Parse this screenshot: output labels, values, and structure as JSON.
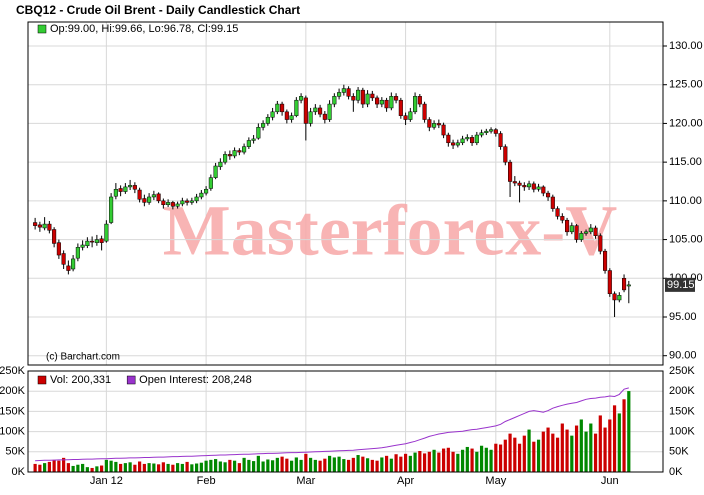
{
  "chart_data": [
    {
      "type": "candlestick",
      "title": "CBQ12 - Crude Oil Brent - Daily Candlestick Chart",
      "legend": "Op:99.00, Hi:99.66, Lo:96.78, Cl:99.15",
      "legend_color": "#33cc33",
      "watermark": "Masterforex-V",
      "credit": "(c) Barchart.com",
      "up_color": "#33cc33",
      "down_color": "#cc0000",
      "grid": true,
      "xlim": [
        -1.5,
        132.2
      ],
      "ylim": [
        88.8,
        133.1
      ],
      "yticks": [
        {
          "value": 90,
          "label": "90.00"
        },
        {
          "value": 95,
          "label": "95.00"
        },
        {
          "value": 100,
          "label": "100.00"
        },
        {
          "value": 105,
          "label": "105.00"
        },
        {
          "value": 110,
          "label": "110.00"
        },
        {
          "value": 115,
          "label": "115.00"
        },
        {
          "value": 120,
          "label": "120.00"
        },
        {
          "value": 125,
          "label": "125.00"
        },
        {
          "value": 130,
          "label": "130.00"
        }
      ],
      "candles": [
        [
          107.2,
          107.8,
          106.3,
          106.8
        ],
        [
          106.9,
          107.3,
          106.0,
          106.6
        ],
        [
          106.5,
          107.9,
          106.2,
          107.0
        ],
        [
          107.0,
          107.4,
          105.8,
          106.2
        ],
        [
          106.3,
          106.6,
          104.0,
          104.5
        ],
        [
          104.6,
          105.0,
          102.5,
          103.0
        ],
        [
          103.2,
          103.6,
          101.2,
          101.8
        ],
        [
          101.6,
          102.3,
          100.5,
          101.0
        ],
        [
          101.2,
          103.0,
          100.9,
          102.5
        ],
        [
          102.6,
          104.5,
          102.2,
          104.0
        ],
        [
          104.0,
          104.9,
          103.6,
          104.3
        ],
        [
          104.2,
          105.3,
          103.9,
          104.8
        ],
        [
          104.8,
          105.4,
          104.0,
          104.7
        ],
        [
          104.6,
          105.6,
          104.2,
          105.0
        ],
        [
          105.1,
          105.5,
          103.6,
          104.6
        ],
        [
          104.8,
          107.5,
          104.6,
          107.0
        ],
        [
          107.2,
          111.0,
          107.0,
          110.5
        ],
        [
          110.6,
          112.3,
          110.2,
          111.5
        ],
        [
          111.6,
          112.0,
          110.6,
          111.2
        ],
        [
          111.2,
          112.3,
          110.9,
          111.8
        ],
        [
          111.8,
          112.7,
          111.4,
          112.0
        ],
        [
          112.0,
          112.4,
          111.0,
          111.5
        ],
        [
          111.4,
          111.7,
          109.8,
          110.2
        ],
        [
          110.3,
          110.8,
          109.3,
          109.8
        ],
        [
          109.8,
          111.0,
          109.5,
          110.5
        ],
        [
          110.5,
          111.3,
          110.1,
          110.8
        ],
        [
          110.9,
          111.1,
          109.7,
          110.0
        ],
        [
          110.0,
          110.3,
          109.0,
          109.5
        ],
        [
          109.5,
          110.2,
          109.2,
          109.8
        ],
        [
          109.8,
          110.0,
          108.9,
          109.3
        ],
        [
          109.3,
          109.9,
          109.0,
          109.6
        ],
        [
          109.6,
          110.4,
          109.3,
          110.0
        ],
        [
          110.0,
          110.3,
          109.4,
          109.8
        ],
        [
          109.8,
          110.4,
          109.5,
          110.0
        ],
        [
          110.0,
          110.9,
          109.7,
          110.5
        ],
        [
          110.5,
          111.4,
          110.2,
          111.0
        ],
        [
          111.0,
          111.9,
          110.7,
          111.5
        ],
        [
          111.6,
          113.4,
          111.3,
          113.0
        ],
        [
          113.0,
          114.9,
          112.8,
          114.5
        ],
        [
          114.4,
          115.5,
          114.0,
          115.0
        ],
        [
          115.0,
          116.4,
          114.7,
          116.0
        ],
        [
          116.0,
          116.5,
          115.3,
          115.8
        ],
        [
          115.8,
          116.9,
          115.5,
          116.5
        ],
        [
          116.5,
          116.8,
          115.9,
          116.3
        ],
        [
          116.3,
          117.4,
          116.0,
          117.0
        ],
        [
          117.0,
          118.2,
          116.7,
          117.8
        ],
        [
          117.8,
          118.5,
          117.4,
          118.0
        ],
        [
          118.1,
          120.0,
          117.9,
          119.5
        ],
        [
          119.5,
          120.4,
          119.1,
          120.0
        ],
        [
          120.0,
          121.2,
          119.7,
          120.8
        ],
        [
          120.8,
          122.0,
          120.4,
          121.5
        ],
        [
          121.5,
          122.9,
          121.2,
          122.5
        ],
        [
          122.5,
          122.8,
          121.0,
          121.5
        ],
        [
          121.5,
          121.8,
          120.0,
          120.5
        ],
        [
          120.5,
          121.4,
          120.1,
          121.0
        ],
        [
          121.0,
          123.4,
          120.8,
          123.0
        ],
        [
          123.0,
          123.9,
          122.6,
          123.5
        ],
        [
          123.3,
          123.6,
          117.8,
          120.0
        ],
        [
          120.0,
          122.0,
          119.6,
          121.5
        ],
        [
          121.5,
          122.5,
          121.1,
          122.0
        ],
        [
          122.0,
          122.4,
          120.8,
          121.2
        ],
        [
          121.2,
          121.6,
          120.0,
          120.5
        ],
        [
          120.5,
          123.0,
          120.2,
          122.5
        ],
        [
          122.5,
          123.9,
          122.1,
          123.5
        ],
        [
          123.5,
          124.5,
          123.1,
          124.0
        ],
        [
          124.0,
          125.0,
          123.6,
          124.5
        ],
        [
          124.5,
          124.8,
          123.1,
          123.5
        ],
        [
          123.5,
          123.9,
          121.5,
          123.0
        ],
        [
          123.0,
          124.7,
          122.6,
          124.3
        ],
        [
          124.3,
          124.6,
          122.0,
          122.5
        ],
        [
          122.5,
          124.3,
          122.1,
          123.8
        ],
        [
          123.8,
          124.2,
          122.9,
          123.3
        ],
        [
          123.3,
          123.6,
          122.0,
          122.5
        ],
        [
          122.5,
          123.4,
          122.1,
          123.0
        ],
        [
          123.0,
          123.3,
          121.5,
          122.0
        ],
        [
          122.0,
          124.0,
          121.7,
          123.5
        ],
        [
          123.5,
          123.9,
          122.6,
          123.0
        ],
        [
          123.0,
          123.3,
          120.6,
          121.0
        ],
        [
          121.0,
          121.4,
          119.8,
          120.5
        ],
        [
          120.5,
          122.0,
          120.2,
          121.5
        ],
        [
          121.5,
          124.0,
          121.2,
          123.5
        ],
        [
          123.5,
          123.8,
          122.1,
          122.5
        ],
        [
          122.5,
          122.8,
          120.1,
          120.5
        ],
        [
          120.5,
          120.8,
          119.0,
          119.5
        ],
        [
          119.5,
          120.4,
          119.2,
          120.0
        ],
        [
          120.0,
          120.5,
          119.4,
          119.8
        ],
        [
          119.8,
          120.1,
          118.1,
          118.5
        ],
        [
          118.5,
          118.8,
          117.0,
          117.5
        ],
        [
          117.5,
          117.9,
          116.7,
          117.2
        ],
        [
          117.2,
          117.9,
          116.9,
          117.5
        ],
        [
          117.5,
          118.4,
          117.2,
          118.0
        ],
        [
          118.0,
          118.6,
          117.7,
          118.2
        ],
        [
          118.2,
          118.5,
          117.1,
          117.5
        ],
        [
          117.5,
          118.9,
          117.2,
          118.5
        ],
        [
          118.5,
          119.2,
          118.2,
          118.8
        ],
        [
          118.8,
          119.3,
          118.5,
          119.0
        ],
        [
          119.0,
          119.5,
          118.7,
          119.2
        ],
        [
          119.2,
          119.4,
          118.3,
          118.7
        ],
        [
          118.7,
          119.0,
          116.6,
          117.0
        ],
        [
          117.0,
          117.3,
          114.6,
          115.0
        ],
        [
          115.0,
          115.3,
          110.5,
          112.5
        ],
        [
          112.5,
          113.2,
          111.9,
          112.3
        ],
        [
          112.3,
          112.6,
          109.8,
          112.0
        ],
        [
          112.0,
          112.4,
          111.3,
          111.8
        ],
        [
          111.8,
          112.6,
          111.4,
          112.2
        ],
        [
          112.2,
          112.5,
          111.1,
          111.5
        ],
        [
          111.5,
          112.2,
          111.2,
          111.8
        ],
        [
          111.8,
          112.0,
          110.6,
          111.0
        ],
        [
          111.0,
          111.3,
          110.0,
          110.5
        ],
        [
          110.5,
          110.8,
          108.6,
          109.0
        ],
        [
          109.0,
          109.3,
          107.6,
          108.0
        ],
        [
          108.0,
          108.4,
          107.1,
          107.5
        ],
        [
          107.5,
          107.8,
          105.5,
          106.0
        ],
        [
          106.0,
          107.2,
          105.7,
          106.8
        ],
        [
          106.8,
          107.0,
          104.6,
          105.0
        ],
        [
          105.0,
          106.1,
          104.7,
          105.8
        ],
        [
          105.8,
          106.3,
          105.5,
          106.0
        ],
        [
          106.0,
          107.0,
          105.7,
          106.5
        ],
        [
          106.5,
          106.8,
          105.1,
          105.5
        ],
        [
          105.5,
          105.8,
          103.1,
          103.5
        ],
        [
          103.5,
          103.8,
          100.6,
          101.0
        ],
        [
          101.0,
          101.3,
          97.6,
          98.0
        ],
        [
          98.0,
          98.3,
          95.0,
          97.2
        ],
        [
          97.2,
          98.2,
          96.9,
          97.8
        ],
        [
          100.0,
          100.5,
          98.2,
          98.5
        ],
        [
          99.0,
          99.66,
          96.78,
          99.15
        ]
      ]
    },
    {
      "type": "bar",
      "grid": true,
      "xlim": [
        -1.5,
        132.2
      ],
      "ylim": [
        0,
        250000
      ],
      "xticks": [
        {
          "value": 15,
          "label": "Jan 12"
        },
        {
          "value": 36,
          "label": "Feb"
        },
        {
          "value": 57,
          "label": "Mar"
        },
        {
          "value": 78,
          "label": "Apr"
        },
        {
          "value": 97,
          "label": "May"
        },
        {
          "value": 121,
          "label": "Jun"
        }
      ],
      "yticks": [
        {
          "value": 0,
          "label": "0K"
        },
        {
          "value": 50000,
          "label": "50K"
        },
        {
          "value": 100000,
          "label": "100K"
        },
        {
          "value": 150000,
          "label": "150K"
        },
        {
          "value": 200000,
          "label": "200K"
        },
        {
          "value": 250000,
          "label": "250K"
        }
      ],
      "series": [
        {
          "name": "Vol: 200,331",
          "color": "#cc0000",
          "up_color": "#008800",
          "values": [
            20000,
            18000,
            22000,
            25000,
            30000,
            28000,
            35000,
            22000,
            15000,
            18000,
            20000,
            12000,
            10000,
            14000,
            16000,
            30000,
            28000,
            25000,
            20000,
            22000,
            24000,
            18000,
            26000,
            20000,
            22000,
            21000,
            19000,
            24000,
            20000,
            18000,
            22000,
            20000,
            25000,
            19000,
            21000,
            23000,
            28000,
            30000,
            32000,
            26000,
            24000,
            30000,
            28000,
            22000,
            35000,
            30000,
            27000,
            40000,
            26000,
            31000,
            29000,
            35000,
            38000,
            33000,
            28000,
            36000,
            30000,
            45000,
            35000,
            30000,
            28000,
            33000,
            40000,
            36000,
            38000,
            32000,
            30000,
            35000,
            42000,
            38000,
            34000,
            30000,
            28000,
            36000,
            40000,
            33000,
            44000,
            38000,
            45000,
            40000,
            48000,
            52000,
            46000,
            50000,
            55000,
            48000,
            58000,
            60000,
            50000,
            45000,
            55000,
            62000,
            58000,
            50000,
            65000,
            60000,
            55000,
            70000,
            68000,
            80000,
            95000,
            85000,
            70000,
            90000,
            105000,
            75000,
            80000,
            100000,
            110000,
            95000,
            85000,
            120000,
            105000,
            90000,
            115000,
            130000,
            100000,
            120000,
            95000,
            140000,
            110000,
            130000,
            165000,
            145000,
            180000,
            200331
          ]
        },
        {
          "name": "Open Interest: 208,248",
          "type": "line",
          "color": "#9933cc",
          "values": [
            28000,
            28500,
            29000,
            29000,
            29500,
            30000,
            30000,
            30500,
            31000,
            31000,
            31500,
            32000,
            32000,
            32500,
            33000,
            33000,
            33500,
            34000,
            34000,
            34500,
            35000,
            35000,
            35500,
            36000,
            36000,
            36500,
            37000,
            37000,
            37500,
            38000,
            38000,
            38500,
            39000,
            39000,
            39500,
            40000,
            40500,
            41000,
            41500,
            42000,
            42000,
            42500,
            43000,
            43500,
            44000,
            44000,
            44500,
            45000,
            45500,
            46000,
            46000,
            46500,
            47000,
            47500,
            48000,
            48000,
            48500,
            49000,
            49500,
            50000,
            50500,
            51000,
            51500,
            52000,
            52500,
            53000,
            53500,
            54000,
            55000,
            56000,
            57000,
            58000,
            59000,
            60000,
            62000,
            64000,
            66000,
            68000,
            70000,
            73000,
            76000,
            80000,
            84000,
            88000,
            91000,
            94000,
            96000,
            98000,
            99000,
            100000,
            101000,
            103000,
            105000,
            106000,
            108000,
            110000,
            112000,
            114000,
            118000,
            125000,
            130000,
            135000,
            140000,
            145000,
            150000,
            152000,
            150000,
            148000,
            152000,
            158000,
            162000,
            165000,
            168000,
            170000,
            172000,
            176000,
            180000,
            182000,
            183000,
            185000,
            186000,
            188000,
            187000,
            192000,
            205000,
            208248
          ]
        }
      ]
    }
  ]
}
